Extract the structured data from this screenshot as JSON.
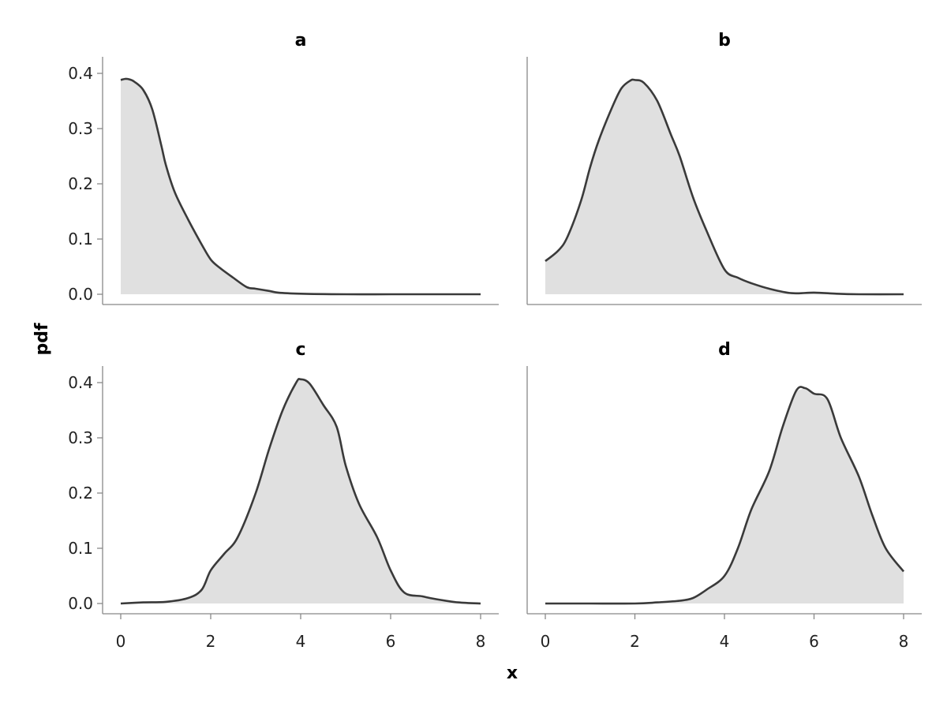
{
  "colors": {
    "fill": "#e0e0e0",
    "line": "#3a3a3a",
    "axis": "#888888"
  },
  "chart_data": {
    "type": "area",
    "xlabel": "x",
    "ylabel": "pdf",
    "xlim": [
      0,
      8
    ],
    "ylim": [
      0,
      0.4
    ],
    "xticks": [
      "0",
      "2",
      "4",
      "6",
      "8"
    ],
    "yticks": [
      "0.0",
      "0.1",
      "0.2",
      "0.3",
      "0.4"
    ],
    "grid": false,
    "panels": [
      {
        "title": "a",
        "x": [
          0,
          0.1,
          0.2,
          0.3,
          0.5,
          0.7,
          0.9,
          1.0,
          1.2,
          1.5,
          1.8,
          2.0,
          2.2,
          2.5,
          2.8,
          3.0,
          3.3,
          3.5,
          4.0,
          5.0,
          6.0,
          7.0,
          8.0
        ],
        "y": [
          0.388,
          0.39,
          0.389,
          0.385,
          0.37,
          0.335,
          0.27,
          0.235,
          0.185,
          0.135,
          0.09,
          0.063,
          0.048,
          0.03,
          0.013,
          0.01,
          0.006,
          0.003,
          0.001,
          0,
          0,
          0,
          0
        ]
      },
      {
        "title": "b",
        "x": [
          0,
          0.3,
          0.5,
          0.8,
          1.0,
          1.2,
          1.5,
          1.7,
          1.9,
          2.0,
          2.2,
          2.5,
          2.8,
          3.0,
          3.3,
          3.6,
          4.0,
          4.3,
          4.6,
          5.0,
          5.5,
          6.0,
          6.5,
          7.0,
          8.0
        ],
        "y": [
          0.06,
          0.08,
          0.105,
          0.17,
          0.23,
          0.28,
          0.34,
          0.373,
          0.387,
          0.388,
          0.383,
          0.35,
          0.29,
          0.25,
          0.175,
          0.115,
          0.045,
          0.03,
          0.02,
          0.01,
          0.002,
          0.003,
          0.001,
          0,
          0
        ],
        "overflow": false
      },
      {
        "title": "c",
        "x": [
          0,
          0.5,
          1.0,
          1.5,
          1.8,
          2.0,
          2.3,
          2.6,
          3.0,
          3.3,
          3.6,
          3.9,
          4.0,
          4.2,
          4.5,
          4.8,
          5.0,
          5.3,
          5.7,
          6.0,
          6.3,
          6.7,
          7.0,
          7.5,
          8.0
        ],
        "y": [
          0,
          0.002,
          0.003,
          0.01,
          0.025,
          0.06,
          0.09,
          0.12,
          0.2,
          0.28,
          0.35,
          0.4,
          0.406,
          0.398,
          0.36,
          0.32,
          0.25,
          0.18,
          0.12,
          0.06,
          0.02,
          0.013,
          0.008,
          0.002,
          0
        ],
        "overflow": false
      },
      {
        "title": "d",
        "x": [
          0,
          1.0,
          2.0,
          2.5,
          3.0,
          3.3,
          3.6,
          4.0,
          4.3,
          4.6,
          5.0,
          5.3,
          5.6,
          5.8,
          6.0,
          6.3,
          6.6,
          7.0,
          7.3,
          7.6,
          8.0
        ],
        "y": [
          0,
          0,
          0,
          0.002,
          0.005,
          0.01,
          0.025,
          0.05,
          0.1,
          0.17,
          0.24,
          0.32,
          0.385,
          0.39,
          0.38,
          0.37,
          0.3,
          0.23,
          0.16,
          0.1,
          0.058
        ]
      }
    ]
  }
}
